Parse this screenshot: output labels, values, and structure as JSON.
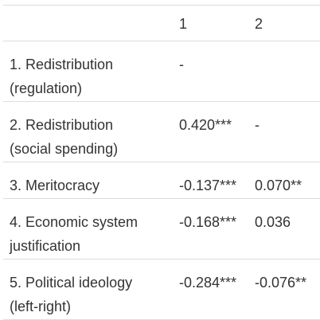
{
  "table": {
    "headers": [
      "",
      "1",
      "2"
    ],
    "rows": [
      {
        "label_line1": "1. Redistribution",
        "label_line2": "(regulation)",
        "col1": "-",
        "col2": ""
      },
      {
        "label_line1": "2. Redistribution",
        "label_line2": "(social spending)",
        "col1": "0.420***",
        "col2": "-"
      },
      {
        "label_line1": "3. Meritocracy",
        "label_line2": "",
        "col1": "-0.137***",
        "col2": "0.070**"
      },
      {
        "label_line1": "4. Economic system",
        "label_line2": "justification",
        "col1": "-0.168***",
        "col2": "0.036"
      },
      {
        "label_line1": "5. Political ideology",
        "label_line2": "(left-right)",
        "col1": "-0.284***",
        "col2": "-0.076**"
      }
    ]
  }
}
